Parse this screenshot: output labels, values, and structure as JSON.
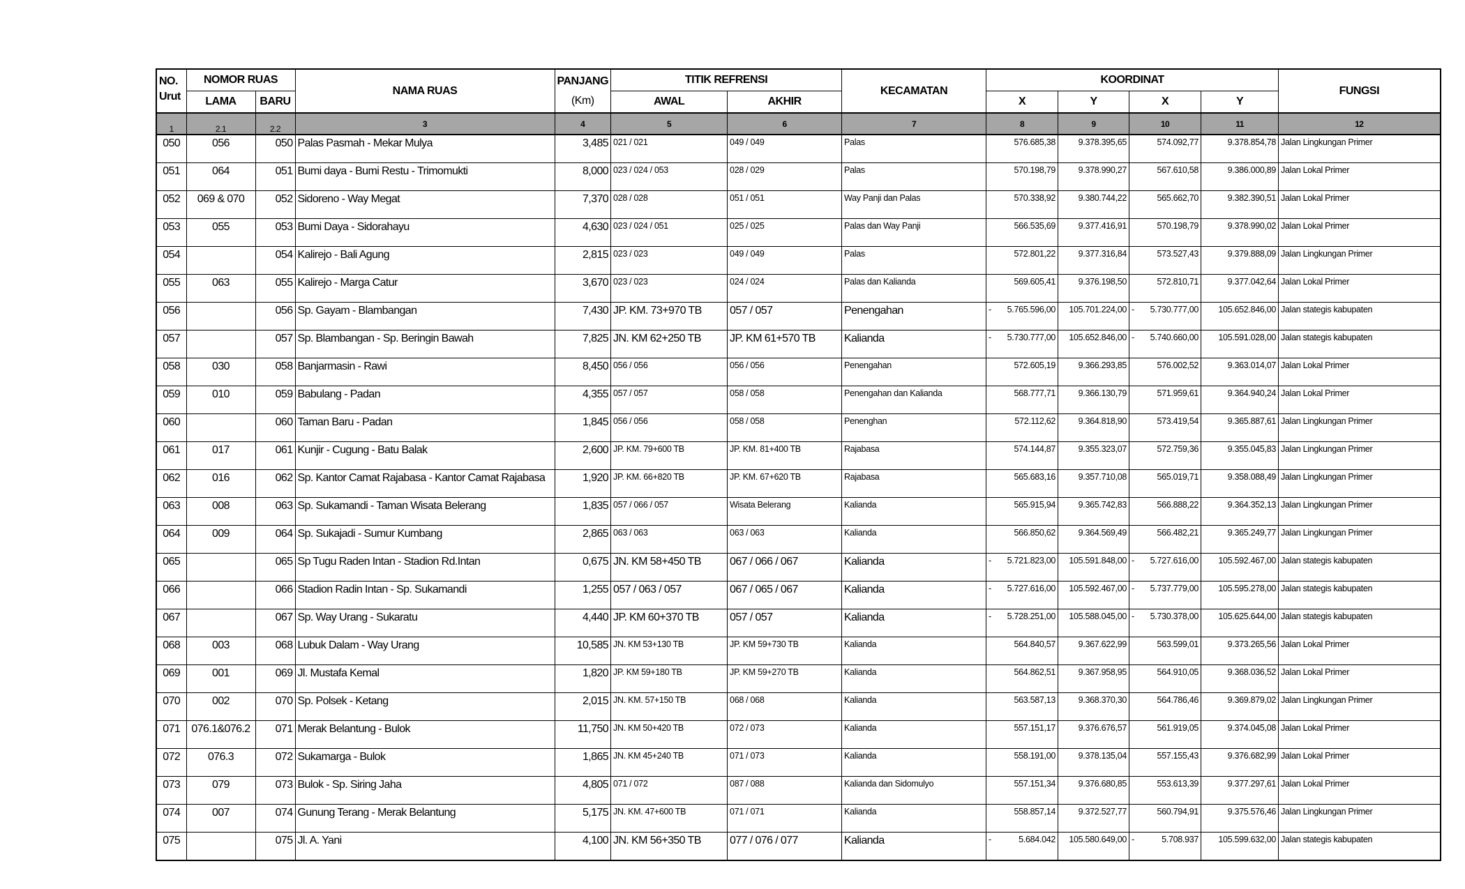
{
  "header": {
    "no": "NO.",
    "urut": "Urut",
    "nomor_ruas": "NOMOR RUAS",
    "lama": "LAMA",
    "baru": "BARU",
    "nama_ruas": "NAMA RUAS",
    "panjang": "PANJANG",
    "km": "(Km)",
    "titik_refrensi": "TITIK REFRENSI",
    "awal": "AWAL",
    "akhir": "AKHIR",
    "kecamatan": "KECAMATAN",
    "koordinat": "KOORDINAT",
    "x1": "X",
    "y1": "Y",
    "x2": "X",
    "y2": "Y",
    "fungsi": "FUNGSI"
  },
  "column_numbers": [
    "1",
    "2.1",
    "2.2",
    "3",
    "4",
    "5",
    "6",
    "7",
    "8",
    "9",
    "10",
    "11",
    "12"
  ],
  "rows": [
    {
      "no": "050",
      "lama": "056",
      "baru": "050",
      "nama": "Palas Pasmah - Mekar Mulya",
      "panjang": "3,485",
      "awal": "021 / 021",
      "akhir": "049 / 049",
      "kec": "Palas",
      "x1p": "",
      "x1": "576.685,38",
      "y1": "9.378.395,65",
      "x2p": "",
      "x2": "574.092,77",
      "y2": "9.378.854,78",
      "fungsi": "Jalan Lingkungan Primer"
    },
    {
      "no": "051",
      "lama": "064",
      "baru": "051",
      "nama": "Bumi daya - Bumi Restu - Trimomukti",
      "panjang": "8,000",
      "awal": "023 / 024 / 053",
      "akhir": "028 / 029",
      "kec": "Palas",
      "x1p": "",
      "x1": "570.198,79",
      "y1": "9.378.990,27",
      "x2p": "",
      "x2": "567.610,58",
      "y2": "9.386.000,89",
      "fungsi": "Jalan Lokal Primer"
    },
    {
      "no": "052",
      "lama": "069 & 070",
      "baru": "052",
      "nama": "Sidoreno - Way Megat",
      "panjang": "7,370",
      "awal": "028 / 028",
      "akhir": "051 / 051",
      "kec": "Way Panji dan Palas",
      "x1p": "",
      "x1": "570.338,92",
      "y1": "9.380.744,22",
      "x2p": "",
      "x2": "565.662,70",
      "y2": "9.382.390,51",
      "fungsi": "Jalan Lokal Primer"
    },
    {
      "no": "053",
      "lama": "055",
      "baru": "053",
      "nama": "Bumi Daya - Sidorahayu",
      "panjang": "4,630",
      "awal": "023 / 024 / 051",
      "akhir": "025 / 025",
      "kec": "Palas dan Way Panji",
      "x1p": "",
      "x1": "566.535,69",
      "y1": "9.377.416,91",
      "x2p": "",
      "x2": "570.198,79",
      "y2": "9.378.990,02",
      "fungsi": "Jalan Lokal Primer"
    },
    {
      "no": "054",
      "lama": "",
      "baru": "054",
      "nama": "Kalirejo - Bali  Agung",
      "panjang": "2,815",
      "awal": "023 / 023",
      "akhir": "049 / 049",
      "kec": "Palas",
      "x1p": "",
      "x1": "572.801,22",
      "y1": "9.377.316,84",
      "x2p": "",
      "x2": "573.527,43",
      "y2": "9.379.888,09",
      "fungsi": "Jalan Lingkungan Primer"
    },
    {
      "no": "055",
      "lama": "063",
      "baru": "055",
      "nama": "Kalirejo - Marga Catur",
      "panjang": "3,670",
      "awal": "023 / 023",
      "akhir": "024 / 024",
      "kec": "Palas dan Kalianda",
      "x1p": "",
      "x1": "569.605,41",
      "y1": "9.376.198,50",
      "x2p": "",
      "x2": "572.810,71",
      "y2": "9.377.042,64",
      "fungsi": "Jalan Lokal Primer"
    },
    {
      "no": "056",
      "lama": "",
      "baru": "056",
      "nama": "Sp. Gayam - Blambangan",
      "panjang": "7,430",
      "awal": "JP. KM. 73+970 TB",
      "akhir": "057 / 057",
      "kec": "Penengahan",
      "x1p": "-",
      "x1": "5.765.596,00",
      "y1": "105.701.224,00",
      "x2p": "-",
      "x2": "5.730.777,00",
      "y2": "105.652.846,00",
      "fungsi": "Jalan stategis kabupaten",
      "big": true
    },
    {
      "no": "057",
      "lama": "",
      "baru": "057",
      "nama": "Sp. Blambangan - Sp. Beringin Bawah",
      "panjang": "7,825",
      "awal": "JN. KM 62+250 TB",
      "akhir": "JP. KM 61+570 TB",
      "kec": "Kalianda",
      "x1p": "-",
      "x1": "5.730.777,00",
      "y1": "105.652.846,00",
      "x2p": "-",
      "x2": "5.740.660,00",
      "y2": "105.591.028,00",
      "fungsi": "Jalan stategis kabupaten",
      "big": true
    },
    {
      "no": "058",
      "lama": "030",
      "baru": "058",
      "nama": "Banjarmasin - Rawi",
      "panjang": "8,450",
      "awal": "056 / 056",
      "akhir": "056 / 056",
      "kec": "Penengahan",
      "x1p": "",
      "x1": "572.605,19",
      "y1": "9.366.293,85",
      "x2p": "",
      "x2": "576.002,52",
      "y2": "9.363.014,07",
      "fungsi": "Jalan Lokal Primer"
    },
    {
      "no": "059",
      "lama": "010",
      "baru": "059",
      "nama": "Babulang - Padan",
      "panjang": "4,355",
      "awal": "057 / 057",
      "akhir": "058 / 058",
      "kec": "Penengahan dan Kalianda",
      "x1p": "",
      "x1": "568.777,71",
      "y1": "9.366.130,79",
      "x2p": "",
      "x2": "571.959,61",
      "y2": "9.364.940,24",
      "fungsi": "Jalan Lokal Primer"
    },
    {
      "no": "060",
      "lama": "",
      "baru": "060",
      "nama": "Taman Baru - Padan",
      "panjang": "1,845",
      "awal": "056 / 056",
      "akhir": "058 / 058",
      "kec": "Penenghan",
      "x1p": "",
      "x1": "572.112,62",
      "y1": "9.364.818,90",
      "x2p": "",
      "x2": "573.419,54",
      "y2": "9.365.887,61",
      "fungsi": "Jalan Lingkungan Primer"
    },
    {
      "no": "061",
      "lama": "017",
      "baru": "061",
      "nama": "Kunjir - Cugung - Batu Balak",
      "panjang": "2,600",
      "awal": "JP. KM. 79+600 TB",
      "akhir": "JP. KM. 81+400 TB",
      "kec": "Rajabasa",
      "x1p": "",
      "x1": "574.144,87",
      "y1": "9.355.323,07",
      "x2p": "",
      "x2": "572.759,36",
      "y2": "9.355.045,83",
      "fungsi": "Jalan Lingkungan Primer"
    },
    {
      "no": "062",
      "lama": "016",
      "baru": "062",
      "nama": "Sp. Kantor Camat Rajabasa - Kantor Camat Rajabasa",
      "panjang": "1,920",
      "awal": "JP. KM. 66+820 TB",
      "akhir": "JP. KM. 67+620 TB",
      "kec": "Rajabasa",
      "x1p": "",
      "x1": "565.683,16",
      "y1": "9.357.710,08",
      "x2p": "",
      "x2": "565.019,71",
      "y2": "9.358.088,49",
      "fungsi": "Jalan Lingkungan Primer"
    },
    {
      "no": "063",
      "lama": "008",
      "baru": "063",
      "nama": "Sp. Sukamandi - Taman Wisata Belerang",
      "panjang": "1,835",
      "awal": "057 / 066 / 057",
      "akhir": "Wisata Belerang",
      "kec": "Kalianda",
      "x1p": "",
      "x1": "565.915,94",
      "y1": "9.365.742,83",
      "x2p": "",
      "x2": "566.888,22",
      "y2": "9.364.352,13",
      "fungsi": "Jalan Lingkungan Primer"
    },
    {
      "no": "064",
      "lama": "009",
      "baru": "064",
      "nama": "Sp. Sukajadi - Sumur Kumbang",
      "panjang": "2,865",
      "awal": "063 / 063",
      "akhir": "063 / 063",
      "kec": "Kalianda",
      "x1p": "",
      "x1": "566.850,62",
      "y1": "9.364.569,49",
      "x2p": "",
      "x2": "566.482,21",
      "y2": "9.365.249,77",
      "fungsi": "Jalan Lingkungan Primer"
    },
    {
      "no": "065",
      "lama": "",
      "baru": "065",
      "nama": "Sp Tugu Raden Intan - Stadion Rd.Intan",
      "panjang": "0,675",
      "awal": "JN. KM 58+450 TB",
      "akhir": "067 / 066 / 067",
      "kec": "Kalianda",
      "x1p": "-",
      "x1": "5.721.823,00",
      "y1": "105.591.848,00",
      "x2p": "-",
      "x2": "5.727.616,00",
      "y2": "105.592.467,00",
      "fungsi": "Jalan stategis kabupaten",
      "big": true
    },
    {
      "no": "066",
      "lama": "",
      "baru": "066",
      "nama": "Stadion Radin Intan - Sp. Sukamandi",
      "panjang": "1,255",
      "awal": "057 / 063 / 057",
      "akhir": "067 / 065 / 067",
      "kec": "Kalianda",
      "x1p": "-",
      "x1": "5.727.616,00",
      "y1": "105.592.467,00",
      "x2p": "-",
      "x2": "5.737.779,00",
      "y2": "105.595.278,00",
      "fungsi": "Jalan stategis kabupaten",
      "big": true
    },
    {
      "no": "067",
      "lama": "",
      "baru": "067",
      "nama": "Sp. Way Urang - Sukaratu",
      "panjang": "4,440",
      "awal": "JP. KM 60+370 TB",
      "akhir": "057 / 057",
      "kec": "Kalianda",
      "x1p": "-",
      "x1": "5.728.251,00",
      "y1": "105.588.045,00",
      "x2p": "-",
      "x2": "5.730.378,00",
      "y2": "105.625.644,00",
      "fungsi": "Jalan stategis kabupaten",
      "big": true
    },
    {
      "no": "068",
      "lama": "003",
      "baru": "068",
      "nama": "Lubuk Dalam - Way Urang",
      "panjang": "10,585",
      "awal": "JN. KM 53+130 TB",
      "akhir": "JP. KM 59+730 TB",
      "kec": "Kalianda",
      "x1p": "",
      "x1": "564.840,57",
      "y1": "9.367.622,99",
      "x2p": "",
      "x2": "563.599,01",
      "y2": "9.373.265,56",
      "fungsi": "Jalan Lokal Primer"
    },
    {
      "no": "069",
      "lama": "001",
      "baru": "069",
      "nama": "Jl. Mustafa Kemal",
      "panjang": "1,820",
      "awal": "JP. KM 59+180 TB",
      "akhir": "JP. KM 59+270 TB",
      "kec": "Kalianda",
      "x1p": "",
      "x1": "564.862,51",
      "y1": "9.367.958,95",
      "x2p": "",
      "x2": "564.910,05",
      "y2": "9.368.036,52",
      "fungsi": "Jalan Lokal Primer"
    },
    {
      "no": "070",
      "lama": "002",
      "baru": "070",
      "nama": "Sp. Polsek - Ketang",
      "panjang": "2,015",
      "awal": "JN. KM. 57+150 TB",
      "akhir": "068 / 068",
      "kec": "Kalianda",
      "x1p": "",
      "x1": "563.587,13",
      "y1": "9.368.370,30",
      "x2p": "",
      "x2": "564.786,46",
      "y2": "9.369.879,02",
      "fungsi": "Jalan Lingkungan Primer"
    },
    {
      "no": "071",
      "lama": "076.1&076.2",
      "baru": "071",
      "nama": "Merak Belantung - Bulok",
      "panjang": "11,750",
      "awal": "JN. KM 50+420 TB",
      "akhir": "072 / 073",
      "kec": "Kalianda",
      "x1p": "",
      "x1": "557.151,17",
      "y1": "9.376.676,57",
      "x2p": "",
      "x2": "561.919,05",
      "y2": "9.374.045,08",
      "fungsi": "Jalan Lokal Primer"
    },
    {
      "no": "072",
      "lama": "076.3",
      "baru": "072",
      "nama": "Sukamarga - Bulok",
      "panjang": "1,865",
      "awal": "JN. KM 45+240 TB",
      "akhir": "071 / 073",
      "kec": "Kalianda",
      "x1p": "",
      "x1": "558.191,00",
      "y1": "9.378.135,04",
      "x2p": "",
      "x2": "557.155,43",
      "y2": "9.376.682,99",
      "fungsi": "Jalan Lokal Primer"
    },
    {
      "no": "073",
      "lama": "079",
      "baru": "073",
      "nama": "Bulok - Sp. Siring Jaha",
      "panjang": "4,805",
      "awal": "071 / 072",
      "akhir": "087 / 088",
      "kec": "Kalianda dan Sidomulyo",
      "x1p": "",
      "x1": "557.151,34",
      "y1": "9.376.680,85",
      "x2p": "",
      "x2": "553.613,39",
      "y2": "9.377.297,61",
      "fungsi": "Jalan Lokal Primer"
    },
    {
      "no": "074",
      "lama": "007",
      "baru": "074",
      "nama": "Gunung Terang - Merak Belantung",
      "panjang": "5,175",
      "awal": "JN. KM. 47+600 TB",
      "akhir": "071 / 071",
      "kec": "Kalianda",
      "x1p": "",
      "x1": "558.857,14",
      "y1": "9.372.527,77",
      "x2p": "",
      "x2": "560.794,91",
      "y2": "9.375.576,46",
      "fungsi": "Jalan Lingkungan Primer"
    },
    {
      "no": "075",
      "lama": "",
      "baru": "075",
      "nama": "Jl. A. Yani",
      "panjang": "4,100",
      "awal": "JN. KM 56+350 TB",
      "akhir": "077 / 076 / 077",
      "kec": "Kalianda",
      "x1p": "-",
      "x1": "5.684.042",
      "y1": "105.580.649,00",
      "x2p": "-",
      "x2": "5.708.937",
      "y2": "105.599.632,00",
      "fungsi": "Jalan stategis kabupaten",
      "big": true
    }
  ]
}
